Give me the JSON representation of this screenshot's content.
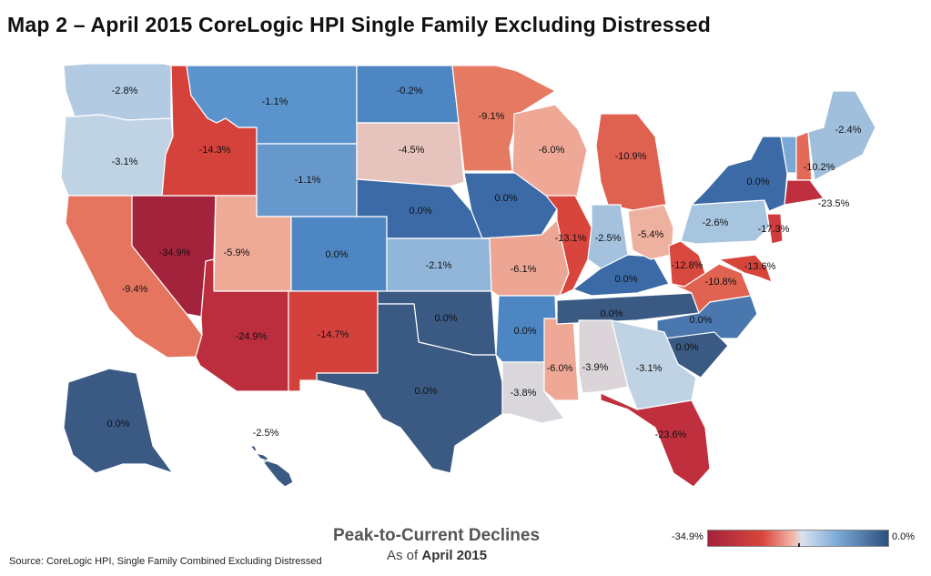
{
  "title": "Map 2 – April 2015 CoreLogic HPI Single Family Excluding Distressed",
  "legend": {
    "title": "Peak-to-Current Declines",
    "subtitle_prefix": "As of",
    "subtitle_date": "April 2015",
    "min_label": "-34.9%",
    "max_label": "0.0%",
    "color_low": "#a4233c",
    "color_mid": "#f3e3dd",
    "color_high": "#2c4e7d"
  },
  "source": "Source: CoreLogic HPI, Single Family Combined Excluding Distressed",
  "states": [
    {
      "id": "WA",
      "value": "-2.8%"
    },
    {
      "id": "OR",
      "value": "-3.1%"
    },
    {
      "id": "CA",
      "value": "-9.4%"
    },
    {
      "id": "NV",
      "value": "-34.9%"
    },
    {
      "id": "ID",
      "value": "-14.3%"
    },
    {
      "id": "MT",
      "value": "-1.1%"
    },
    {
      "id": "WY",
      "value": "-1.1%"
    },
    {
      "id": "UT",
      "value": "-5.9%"
    },
    {
      "id": "AZ",
      "value": "-24.9%"
    },
    {
      "id": "CO",
      "value": "0.0%"
    },
    {
      "id": "NM",
      "value": "-14.7%"
    },
    {
      "id": "ND",
      "value": "-0.2%"
    },
    {
      "id": "SD",
      "value": "-4.5%"
    },
    {
      "id": "NE",
      "value": "0.0%"
    },
    {
      "id": "KS",
      "value": "-2.1%"
    },
    {
      "id": "OK",
      "value": "0.0%"
    },
    {
      "id": "TX",
      "value": "0.0%"
    },
    {
      "id": "MN",
      "value": "-9.1%"
    },
    {
      "id": "IA",
      "value": "0.0%"
    },
    {
      "id": "MO",
      "value": "-6.1%"
    },
    {
      "id": "AR",
      "value": "0.0%"
    },
    {
      "id": "LA",
      "value": "-3.8%"
    },
    {
      "id": "WI",
      "value": "-6.0%"
    },
    {
      "id": "IL",
      "value": "-13.1%"
    },
    {
      "id": "MS",
      "value": "-6.0%"
    },
    {
      "id": "MI",
      "value": "-10.9%"
    },
    {
      "id": "IN",
      "value": "-2.5%"
    },
    {
      "id": "KY",
      "value": "0.0%"
    },
    {
      "id": "TN",
      "value": "0.0%"
    },
    {
      "id": "AL",
      "value": "-3.9%"
    },
    {
      "id": "OH",
      "value": "-5.4%"
    },
    {
      "id": "WV",
      "value": "-12.8%"
    },
    {
      "id": "VA",
      "value": "-10.8%"
    },
    {
      "id": "NC",
      "value": "0.0%"
    },
    {
      "id": "SC",
      "value": "0.0%"
    },
    {
      "id": "GA",
      "value": "-3.1%"
    },
    {
      "id": "FL",
      "value": "-23.6%"
    },
    {
      "id": "PA",
      "value": "-2.6%"
    },
    {
      "id": "NY",
      "value": "0.0%"
    },
    {
      "id": "NJ",
      "value": "-17.3%"
    },
    {
      "id": "MD",
      "value": "-13.6%"
    },
    {
      "id": "VT",
      "value": ""
    },
    {
      "id": "NH",
      "value": "-10.2%"
    },
    {
      "id": "ME",
      "value": "-2.4%"
    },
    {
      "id": "MA",
      "value": "-23.5%"
    },
    {
      "id": "AK",
      "value": "0.0%"
    },
    {
      "id": "HI",
      "value": "-2.5%"
    }
  ]
}
